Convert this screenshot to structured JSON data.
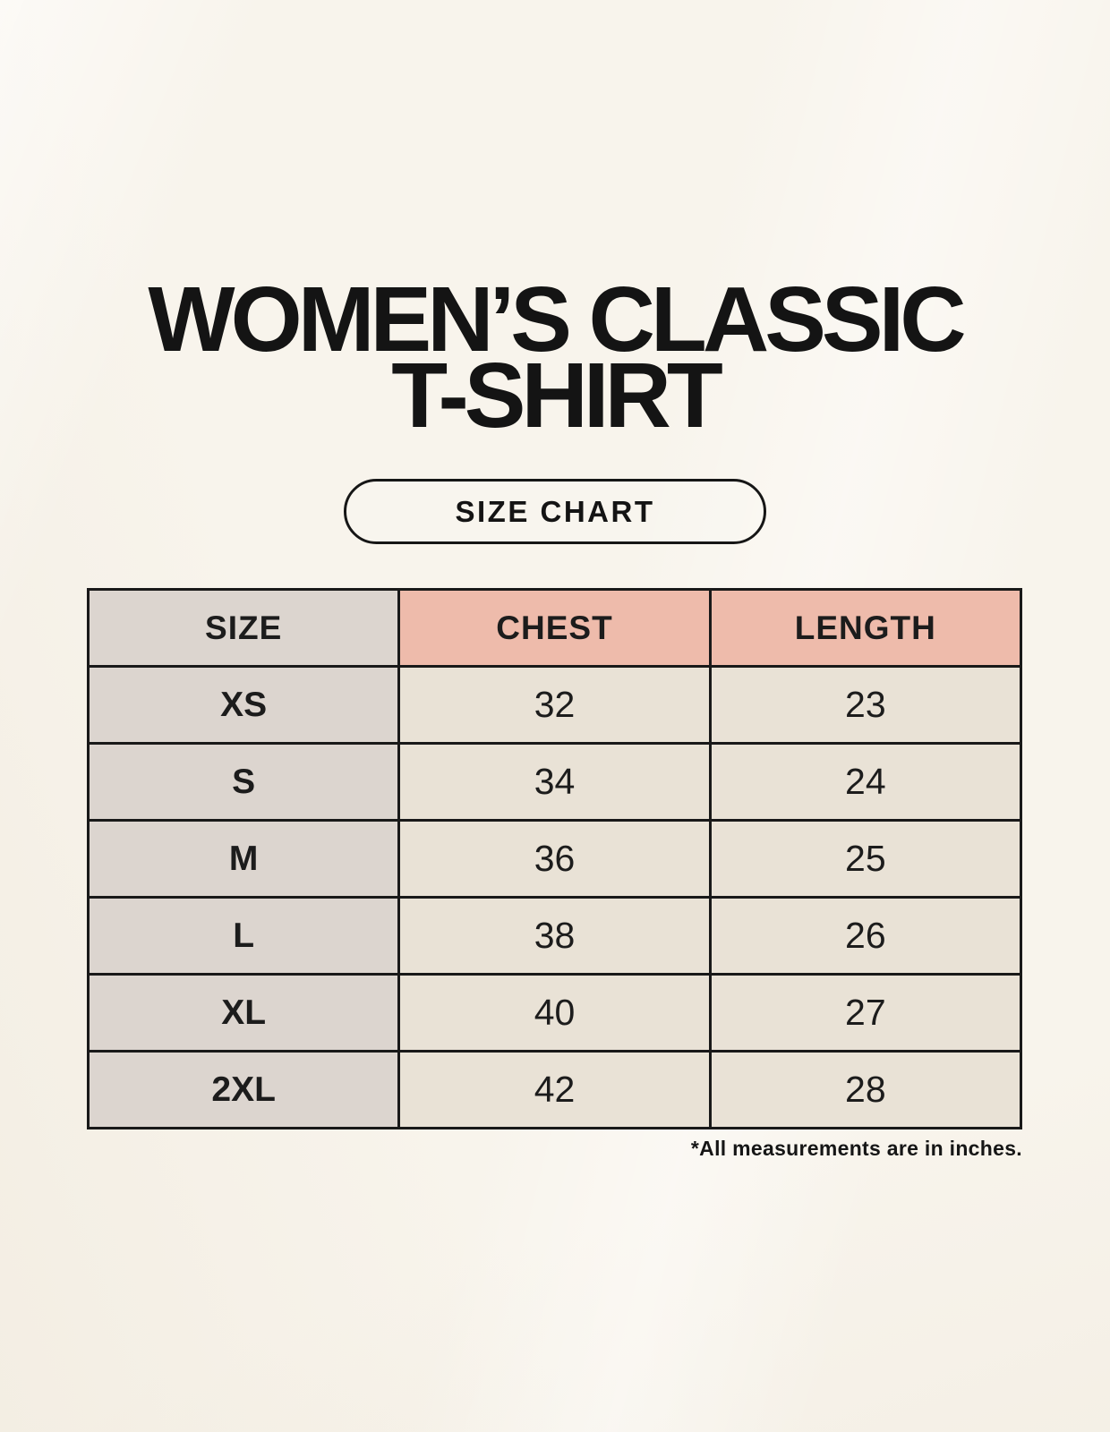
{
  "page": {
    "title_line1": "WOMEN’S CLASSIC",
    "title_line2": "T-SHIRT",
    "badge_label": "SIZE CHART",
    "footnote": "*All measurements are in inches."
  },
  "colors": {
    "background": "#F8F4EC",
    "header_accent_pink": "#EEBBAB",
    "size_column_gray": "#DCD5CF",
    "data_cell_cream": "#E9E2D6",
    "border": "#191919",
    "text": "#1C1C1C"
  },
  "chart_data": {
    "type": "table",
    "title": "WOMEN’S CLASSIC T-SHIRT — SIZE CHART",
    "columns": [
      "SIZE",
      "CHEST",
      "LENGTH"
    ],
    "rows": [
      [
        "XS",
        "32",
        "23"
      ],
      [
        "S",
        "34",
        "24"
      ],
      [
        "M",
        "36",
        "25"
      ],
      [
        "L",
        "38",
        "26"
      ],
      [
        "XL",
        "40",
        "27"
      ],
      [
        "2XL",
        "42",
        "28"
      ]
    ],
    "units": "inches"
  }
}
